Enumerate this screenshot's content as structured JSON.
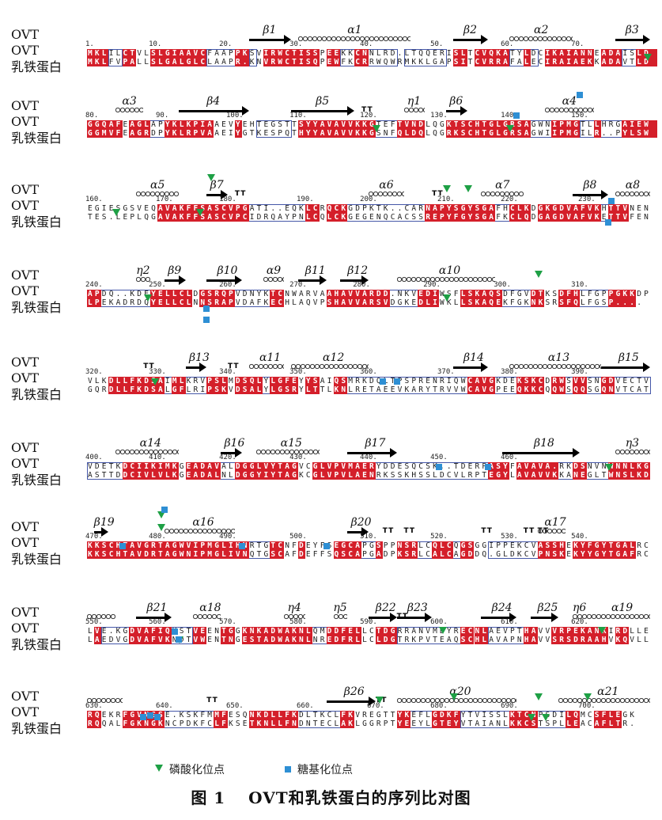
{
  "labels": {
    "ovt": "OVT",
    "lf": "乳铁蛋白"
  },
  "blocks": [
    {
      "ruler": [
        "1",
        "10",
        "20",
        "30",
        "40",
        "50",
        "60",
        "70"
      ],
      "ss": [
        {
          "type": "beta",
          "label": "β1"
        },
        {
          "type": "alpha",
          "label": "α1"
        },
        {
          "type": "beta",
          "label": "β2"
        },
        {
          "type": "alpha",
          "label": "α2"
        },
        {
          "type": "beta",
          "label": "β3"
        }
      ],
      "ovt": "MKLILCTVLSLGIAAVCFAAPPKSVIRWCTISSPEEKKCNNLRD.LTQQERISLTCVQKATYLDCIKAIANNEADAISLD",
      "lf": "MKLFVPALLSLGALGLCLAAPR.KNVRWCTISQPEWFKCRRWQWRMKKLGAPSITCVRRAFALECIRAIAEKKADAVTLD",
      "fills": [
        0,
        1,
        2,
        3,
        4,
        5,
        6,
        7,
        8,
        9,
        10,
        11,
        12,
        13,
        14,
        15,
        16,
        17,
        18,
        19,
        20,
        21,
        22,
        23,
        24,
        25,
        26,
        27
      ],
      "markers": [
        {
          "kind": "phospho"
        }
      ]
    },
    {
      "ruler": [
        "80",
        "90",
        "100",
        "110",
        "120",
        "130",
        "140",
        "150"
      ],
      "ss": [
        {
          "type": "alpha",
          "label": "α3"
        },
        {
          "type": "beta",
          "label": "β4"
        },
        {
          "type": "beta",
          "label": "β5"
        },
        {
          "type": "tt",
          "label": "TT"
        },
        {
          "type": "alpha",
          "label": "η1"
        },
        {
          "type": "beta",
          "label": "β6"
        },
        {
          "type": "alpha",
          "label": "α4"
        }
      ],
      "ovt": "GGQAFEAGLAPYKLKPIAAEVYEHTEGSTTSYYAVAVVKKGTEFTVNDLQGKTSCHTGLGRSAGWNIPMGTLLHRGAIEW",
      "lf": "GGMVFEAGRDPYKLRPVAAEIYGTKESPQTHYYAVAVVKKGSNFQLDQLQGRKSCHTGLGRSAGWIIPMGILR..PYLSW",
      "markers": [
        {
          "kind": "phospho"
        },
        {
          "kind": "phospho"
        },
        {
          "kind": "glyco"
        },
        {
          "kind": "glyco"
        }
      ]
    },
    {
      "ruler": [
        "160",
        "170",
        "180",
        "190",
        "200",
        "210",
        "220",
        "230"
      ],
      "ss": [
        {
          "type": "alpha",
          "label": "α5"
        },
        {
          "type": "beta",
          "label": "β7"
        },
        {
          "type": "tt",
          "label": "TT"
        },
        {
          "type": "alpha",
          "label": "α6"
        },
        {
          "type": "tt",
          "label": "TT"
        },
        {
          "type": "alpha",
          "label": "α7"
        },
        {
          "type": "beta",
          "label": "β8"
        },
        {
          "type": "alpha",
          "label": "α8"
        }
      ],
      "ovt": "EGIESGSVEQAVAKFFSASCVPGATI..EQKLCRQCKGDPKTK..CARNAPYSGYSGAFHCLKDGKGDVAFVKHTTVNEN",
      "lf": "TES.LEPLQGAVAKFFSASCVPCIDRQAYPNLCQLCKGEGENQCACSSREPYFGYSGAFKCLQDGAGDVAFVKETTVFEN",
      "markers": [
        {
          "kind": "phospho"
        },
        {
          "kind": "phospho"
        },
        {
          "kind": "phospho"
        },
        {
          "kind": "phospho"
        },
        {
          "kind": "phospho"
        },
        {
          "kind": "glyco"
        },
        {
          "kind": "glyco"
        }
      ]
    },
    {
      "ruler": [
        "240",
        "250",
        "260",
        "270",
        "280",
        "290",
        "300",
        "310"
      ],
      "ss": [
        {
          "type": "alpha",
          "label": "η2"
        },
        {
          "type": "beta",
          "label": "β9"
        },
        {
          "type": "beta",
          "label": "β10"
        },
        {
          "type": "alpha",
          "label": "α9"
        },
        {
          "type": "beta",
          "label": "β11"
        },
        {
          "type": "beta",
          "label": "β12"
        },
        {
          "type": "alpha",
          "label": "α10"
        }
      ],
      "ovt": "APDQ..KDEYELLCLDGSRQPVDNYKTCNWARVAAHAVVARDD.NKVEDIWSFLSKAQSDFGVDTKSDFHLFGPPGKKDP",
      "lf": "LPEKADRDQYELLCLNNSRAPVDAFKECHLAQVPSHAVVARSVDGKEDLIWKLLSKAQEKFGKNKSRSFQLFGSP....",
      "markers": [
        {
          "kind": "phospho"
        },
        {
          "kind": "phospho"
        },
        {
          "kind": "phospho"
        },
        {
          "kind": "glyco"
        },
        {
          "kind": "glyco"
        }
      ]
    },
    {
      "ruler": [
        "320",
        "330",
        "340",
        "350",
        "360",
        "370",
        "380",
        "390"
      ],
      "ss": [
        {
          "type": "tt",
          "label": "TT"
        },
        {
          "type": "beta",
          "label": "β13"
        },
        {
          "type": "tt",
          "label": "TT"
        },
        {
          "type": "alpha",
          "label": "α11"
        },
        {
          "type": "alpha",
          "label": "α12"
        },
        {
          "type": "beta",
          "label": "β14"
        },
        {
          "type": "alpha",
          "label": "α13"
        },
        {
          "type": "beta",
          "label": "β15"
        }
      ],
      "ovt": "VLKDLLFKDSAIMLKRVPSLMDSQLYLGFEYYSAIQSMRKDQLTPSPRENRIQWCAVGKDEKSKCDRWSVVSNGDVECTV",
      "lf": "GQRDLLFKDSALGFLRIPSKVDSALYLGSRYLTTLKNLRETAEEVKARYTRVVWCAVGPEEQKKCQQWSQQSGQNVTCAT",
      "markers": [
        {
          "kind": "phospho"
        },
        {
          "kind": "glyco"
        },
        {
          "kind": "glyco"
        }
      ]
    },
    {
      "ruler": [
        "400",
        "410",
        "420",
        "430",
        "440",
        "450",
        "460"
      ],
      "ss": [
        {
          "type": "alpha",
          "label": "α14"
        },
        {
          "type": "beta",
          "label": "β16"
        },
        {
          "type": "alpha",
          "label": "α15"
        },
        {
          "type": "beta",
          "label": "β17"
        },
        {
          "type": "beta",
          "label": "β18"
        },
        {
          "type": "alpha",
          "label": "η3"
        }
      ],
      "ovt": "VDETKDCIIKIMKGEADAVALDGGLVYTAGVCGLVPVMAERYDDESQCSK..TDERPASYFAVAVA.RKDSNVNWNNLKG",
      "lf": "ASTTDDCIVLVLKGEADALNLDGGYIYTAGKCGLVPVLAENRKSSKHSSLDCVLRPTEGYLAVAVVKKANEGLTWNSLKD",
      "markers": [
        {
          "kind": "phospho"
        },
        {
          "kind": "glyco"
        },
        {
          "kind": "glyco"
        }
      ]
    },
    {
      "ruler": [
        "470",
        "480",
        "490",
        "500",
        "510",
        "520",
        "530",
        "540"
      ],
      "ss": [
        {
          "type": "beta",
          "label": "β19"
        },
        {
          "type": "alpha",
          "label": "α16"
        },
        {
          "type": "beta",
          "label": "β20"
        },
        {
          "type": "tt",
          "label": "TT"
        },
        {
          "type": "tt",
          "label": "TT"
        },
        {
          "type": "tt",
          "label": "TT"
        },
        {
          "type": "tt",
          "label": "TT"
        },
        {
          "type": "tt",
          "label": "TT"
        },
        {
          "type": "alpha",
          "label": "α17"
        }
      ],
      "ovt": "KKSCHTAVGRTAGWVIPMGLIHNRTGTCNFDEYFSEGCAPGSPPNSRLCQLCQGSGGIPPEKCVASSHEKYFGYTGALRC",
      "lf": "KKSCHTAVDRTAGWNIPMGLIVNQTGSCAFDEFFSQSCAPGADPKSRLCALCAGDDQ.GLDKCVPNSKEKYYGYTGAFRC",
      "markers": [
        {
          "kind": "phospho"
        },
        {
          "kind": "phospho"
        },
        {
          "kind": "glyco"
        },
        {
          "kind": "glyco"
        },
        {
          "kind": "glyco"
        },
        {
          "kind": "glyco"
        }
      ]
    },
    {
      "ruler": [
        "550",
        "560",
        "570",
        "580",
        "590",
        "600",
        "610",
        "620"
      ],
      "ss": [
        {
          "type": "alpha",
          "label": ""
        },
        {
          "type": "beta",
          "label": "β21"
        },
        {
          "type": "alpha",
          "label": "α18"
        },
        {
          "type": "alpha",
          "label": "η4"
        },
        {
          "type": "alpha",
          "label": "η5"
        },
        {
          "type": "beta",
          "label": "β22"
        },
        {
          "type": "tt",
          "label": "TT"
        },
        {
          "type": "beta",
          "label": "β23"
        },
        {
          "type": "beta",
          "label": "β24"
        },
        {
          "type": "beta",
          "label": "β25"
        },
        {
          "type": "alpha",
          "label": "η6"
        },
        {
          "type": "alpha",
          "label": "α19"
        }
      ],
      "ovt": "LVE.KGDVAFIQHSTVEENTGGKNKADWAKNLQMDDFELLCTDGRRANVMDYRECNLAEVPTHAVVVRPEKANKIRDLLE",
      "lf": "LAEDVGDVAFVKNDTVWENTNGESTADWAKNLNREDFRLLCLDGTRKPVTEAQSCHLAVAPNHAVVSRSDRAAHVKQVLL",
      "markers": [
        {
          "kind": "phospho"
        },
        {
          "kind": "phospho"
        },
        {
          "kind": "phospho"
        },
        {
          "kind": "glyco"
        },
        {
          "kind": "glyco"
        }
      ]
    },
    {
      "ruler": [
        "630",
        "640",
        "650",
        "660",
        "670",
        "680",
        "690",
        "700"
      ],
      "ss": [
        {
          "type": "alpha",
          "label": ""
        },
        {
          "type": "tt",
          "label": "TT"
        },
        {
          "type": "beta",
          "label": "β26"
        },
        {
          "type": "tt",
          "label": "TT"
        },
        {
          "type": "alpha",
          "label": "α20"
        },
        {
          "type": "alpha",
          "label": "α21"
        }
      ],
      "ovt": "RQEKRFGVNGSE.KSKFMMFESQNKDLLFKDLTKCLFKVREGTTYKEFLGDKFYTVISSLKTCNPSDILQMCSFLEGK",
      "lf": "RQQALFGKNGKNCPDKFCLFKSETKNLLFNDNTECLAKLGGRPTYEEYLGTEYVTAIANLKKCSTSPLLEACAFLTR.",
      "markers": [
        {
          "kind": "phospho"
        },
        {
          "kind": "phospho"
        },
        {
          "kind": "phospho"
        },
        {
          "kind": "phospho"
        },
        {
          "kind": "phospho"
        },
        {
          "kind": "phospho"
        },
        {
          "kind": "glyco"
        },
        {
          "kind": "glyco"
        },
        {
          "kind": "glyco"
        }
      ]
    }
  ],
  "legend": {
    "phospho": "磷酸化位点",
    "glyco": "糖基化位点"
  },
  "caption": "图 1　 OVT和乳铁蛋白的序列比对图"
}
